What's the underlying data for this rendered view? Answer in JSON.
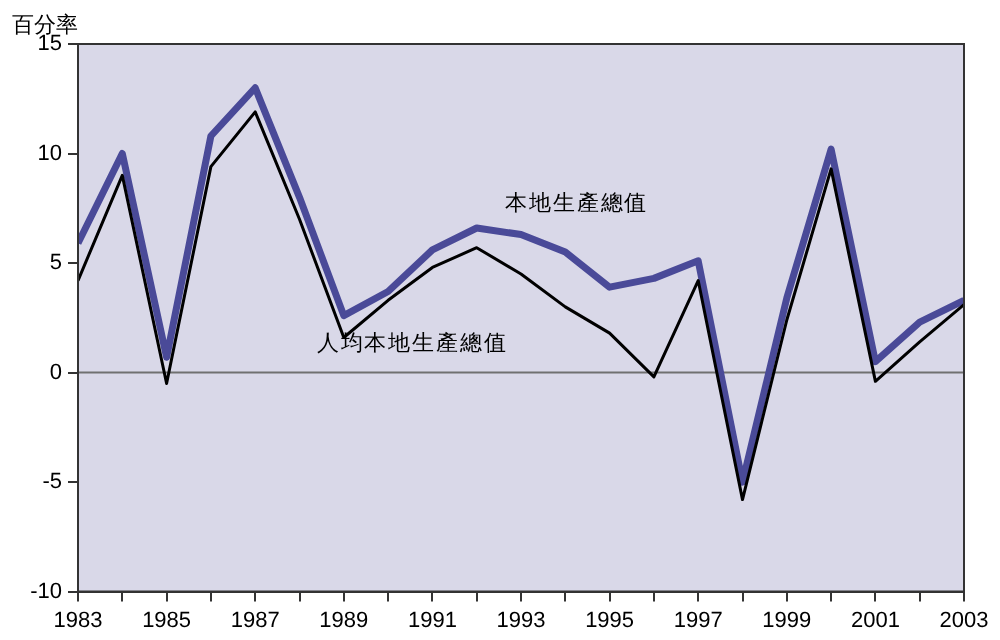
{
  "chart_data": {
    "type": "line",
    "ylabel": "百分率",
    "x": [
      1983,
      1984,
      1985,
      1986,
      1987,
      1988,
      1989,
      1990,
      1991,
      1992,
      1993,
      1994,
      1995,
      1996,
      1997,
      1998,
      1999,
      2000,
      2001,
      2002,
      2003
    ],
    "series": [
      {
        "name": "本地生產總值",
        "color": "#4a4a98",
        "values": [
          5.9,
          10.0,
          0.7,
          10.8,
          13.0,
          8.0,
          2.6,
          3.7,
          5.6,
          6.6,
          6.3,
          5.5,
          3.9,
          4.3,
          5.1,
          -5.0,
          3.4,
          10.2,
          0.5,
          2.3,
          3.3
        ]
      },
      {
        "name": "人均本地生產總值",
        "color": "#000000",
        "values": [
          4.2,
          9.0,
          -0.5,
          9.4,
          11.9,
          7.0,
          1.6,
          3.3,
          4.8,
          5.7,
          4.5,
          3.0,
          1.8,
          -0.2,
          4.2,
          -5.8,
          2.4,
          9.3,
          -0.4,
          1.4,
          3.1
        ]
      }
    ],
    "xlim": [
      1983,
      2003
    ],
    "xticks": [
      1983,
      {
        "value": 1984,
        "label": null
      },
      1985,
      {
        "value": 1986,
        "label": null
      },
      1987,
      {
        "value": 1988,
        "label": null
      },
      1989,
      {
        "value": 1990,
        "label": null
      },
      1991,
      {
        "value": 1992,
        "label": null
      },
      1993,
      {
        "value": 1994,
        "label": null
      },
      1995,
      {
        "value": 1996,
        "label": null
      },
      1997,
      {
        "value": 1998,
        "label": null
      },
      1999,
      {
        "value": 2000,
        "label": null
      },
      2001,
      {
        "value": 2002,
        "label": null
      },
      2003
    ],
    "ylim": [
      -10,
      15
    ],
    "yticks": [
      -10,
      -5,
      0,
      5,
      10,
      15
    ],
    "ref_lines": [
      {
        "axis": "y",
        "value": 0,
        "color": "#707070"
      }
    ],
    "grid": false,
    "legend": false,
    "marker": "none",
    "line_style": "solid"
  }
}
